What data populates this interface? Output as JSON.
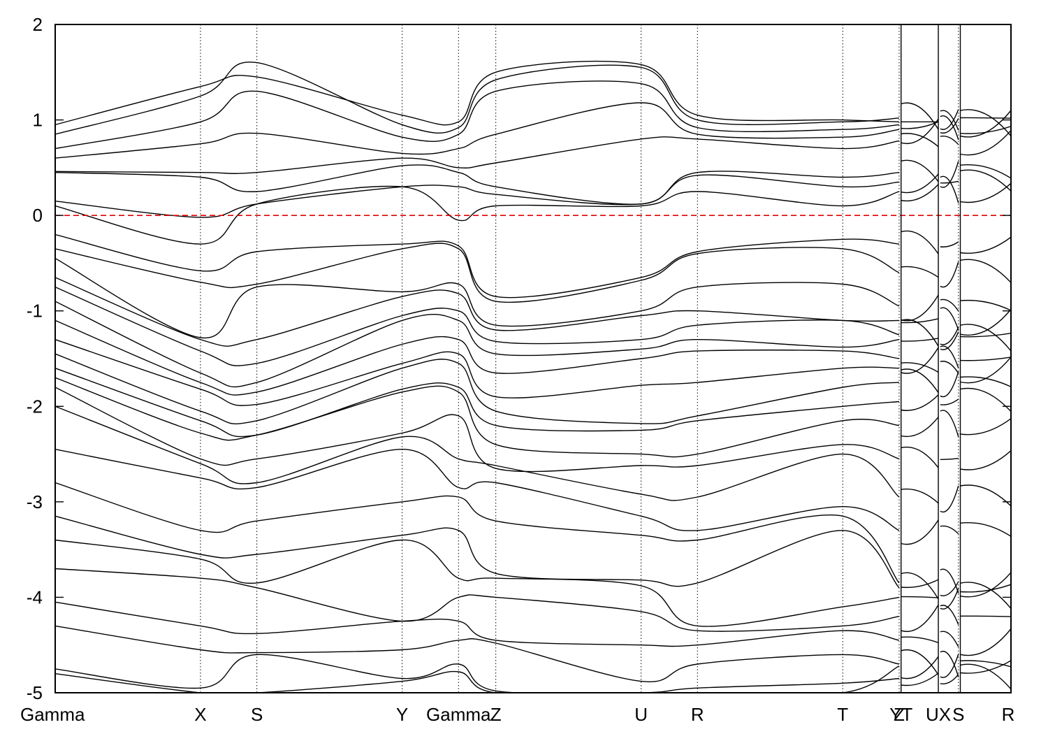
{
  "chart_data": {
    "type": "line",
    "title": "",
    "xlabel": "",
    "ylabel": "",
    "ylim": [
      -5,
      2
    ],
    "yticks": [
      2,
      1,
      0,
      -1,
      -2,
      -3,
      -4,
      -5
    ],
    "grid": false,
    "fermi_level": 0,
    "fermi_color": "#e00000",
    "line_color": "#000000",
    "kpath": [
      {
        "label": "Gamma",
        "x": 0.0
      },
      {
        "label": "X",
        "x": 0.152
      },
      {
        "label": "S",
        "x": 0.211
      },
      {
        "label": "Y",
        "x": 0.363
      },
      {
        "label": "Gamma",
        "x": 0.422
      },
      {
        "label": "Z",
        "x": 0.461
      },
      {
        "label": "U",
        "x": 0.613
      },
      {
        "label": "R",
        "x": 0.672
      },
      {
        "label": "T",
        "x": 0.824
      },
      {
        "label": "Z",
        "x": 0.883
      },
      {
        "label": "YT",
        "x": 0.885
      },
      {
        "label": "UX",
        "x": 0.924
      },
      {
        "label": "S",
        "x": 0.945
      },
      {
        "label": "R",
        "x": 1.0
      }
    ],
    "segment_breaks": [
      0.885,
      0.924,
      0.947
    ],
    "series_note_bands_estimated": true,
    "bands_control": [
      [
        0.95,
        1.35,
        1.45,
        1.05,
        0.98,
        1.5,
        1.58,
        1.05,
        1.0,
        0.98
      ],
      [
        0.85,
        1.25,
        1.6,
        0.95,
        0.92,
        1.42,
        1.55,
        1.0,
        0.98,
        1.02
      ],
      [
        0.7,
        0.98,
        1.3,
        0.82,
        0.85,
        1.3,
        1.38,
        0.92,
        0.9,
        0.95
      ],
      [
        0.6,
        0.75,
        0.86,
        0.65,
        0.7,
        0.85,
        1.18,
        0.85,
        0.82,
        0.9
      ],
      [
        0.46,
        0.45,
        0.45,
        0.6,
        0.5,
        0.55,
        0.8,
        0.8,
        0.7,
        0.78
      ],
      [
        0.45,
        0.4,
        0.25,
        0.52,
        0.45,
        0.3,
        0.12,
        0.45,
        0.4,
        0.45
      ],
      [
        0.15,
        -0.02,
        0.12,
        0.3,
        0.3,
        0.22,
        0.12,
        0.42,
        0.3,
        0.35
      ],
      [
        0.1,
        -0.3,
        0.12,
        0.3,
        -0.05,
        0.1,
        0.1,
        0.25,
        0.1,
        0.25
      ],
      [
        -0.2,
        -0.58,
        -0.38,
        -0.3,
        -0.32,
        -0.85,
        -0.65,
        -0.38,
        -0.25,
        -0.3
      ],
      [
        -0.35,
        -0.7,
        -0.72,
        -0.35,
        -0.35,
        -0.9,
        -0.68,
        -0.4,
        -0.35,
        -0.6
      ],
      [
        -0.45,
        -1.28,
        -0.75,
        -0.8,
        -0.72,
        -1.15,
        -1.0,
        -0.75,
        -0.72,
        -0.95
      ],
      [
        -0.65,
        -1.3,
        -1.3,
        -0.85,
        -0.82,
        -1.2,
        -1.05,
        -1.0,
        -1.1,
        -1.1
      ],
      [
        -0.75,
        -1.42,
        -1.55,
        -1.05,
        -1.0,
        -1.32,
        -1.3,
        -1.15,
        -1.1,
        -1.25
      ],
      [
        -0.9,
        -1.65,
        -1.75,
        -1.1,
        -1.1,
        -1.45,
        -1.4,
        -1.3,
        -1.38,
        -1.3
      ],
      [
        -1.1,
        -1.75,
        -1.85,
        -1.35,
        -1.3,
        -1.65,
        -1.5,
        -1.42,
        -1.42,
        -1.5
      ],
      [
        -1.3,
        -1.82,
        -1.98,
        -1.55,
        -1.45,
        -1.9,
        -1.78,
        -1.75,
        -1.6,
        -1.6
      ],
      [
        -1.45,
        -2.05,
        -2.15,
        -1.6,
        -1.55,
        -2.05,
        -2.18,
        -2.1,
        -1.8,
        -1.75
      ],
      [
        -1.6,
        -2.15,
        -2.3,
        -1.82,
        -1.8,
        -2.2,
        -2.25,
        -2.15,
        -2.0,
        -1.95
      ],
      [
        -1.7,
        -2.28,
        -2.3,
        -1.85,
        -1.85,
        -2.4,
        -2.5,
        -2.5,
        -2.15,
        -2.2
      ],
      [
        -1.8,
        -2.55,
        -2.55,
        -2.28,
        -2.1,
        -2.65,
        -2.62,
        -2.62,
        -2.4,
        -2.55
      ],
      [
        -2.0,
        -2.6,
        -2.8,
        -2.32,
        -2.55,
        -2.62,
        -2.92,
        -2.95,
        -2.5,
        -2.95
      ],
      [
        -2.45,
        -2.75,
        -2.85,
        -2.45,
        -2.85,
        -2.8,
        -3.15,
        -3.3,
        -3.05,
        -3.3
      ],
      [
        -2.8,
        -3.3,
        -3.2,
        -3.0,
        -2.95,
        -3.2,
        -3.35,
        -3.4,
        -3.15,
        -3.85
      ],
      [
        -3.15,
        -3.55,
        -3.55,
        -3.35,
        -3.3,
        -3.75,
        -3.82,
        -3.85,
        -3.3,
        -3.9
      ],
      [
        -3.4,
        -3.6,
        -3.85,
        -3.4,
        -3.8,
        -3.8,
        -3.88,
        -4.3,
        -4.1,
        -4.0
      ],
      [
        -3.7,
        -3.8,
        -3.9,
        -4.25,
        -4.0,
        -4.0,
        -4.15,
        -4.35,
        -4.3,
        -4.2
      ],
      [
        -4.05,
        -4.3,
        -4.38,
        -4.25,
        -4.25,
        -4.45,
        -4.5,
        -4.5,
        -4.35,
        -4.45
      ],
      [
        -4.3,
        -4.55,
        -4.58,
        -4.55,
        -4.45,
        -4.48,
        -4.88,
        -4.7,
        -4.6,
        -4.7
      ],
      [
        -4.75,
        -4.95,
        -4.6,
        -4.85,
        -4.7,
        -4.98,
        -5.0,
        -4.95,
        -4.9,
        -4.85
      ],
      [
        -4.8,
        -5.0,
        -5.0,
        -4.88,
        -4.78,
        -5.0,
        -5.0,
        -5.0,
        -5.0,
        -4.72
      ]
    ]
  }
}
